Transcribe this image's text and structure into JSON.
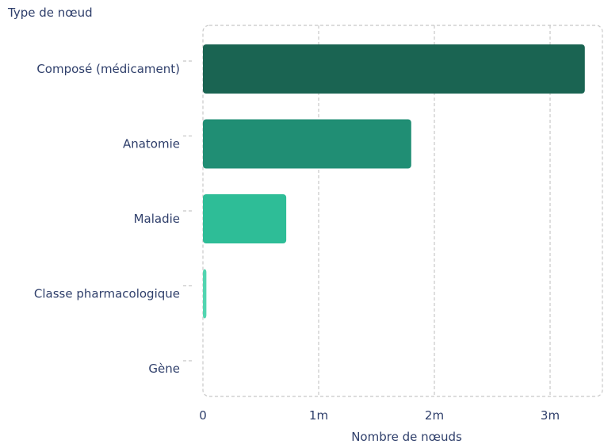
{
  "chart_data": {
    "type": "bar",
    "orientation": "horizontal",
    "xlabel": "Nombre de nœuds",
    "ylabel": "Type de nœud",
    "categories": [
      "Composé (médicament)",
      "Anatomie",
      "Maladie",
      "Classe pharmacologique",
      "Gène"
    ],
    "values": [
      3300000,
      1800000,
      720000,
      30000,
      0
    ],
    "xlim": [
      0,
      3450000
    ],
    "x_ticks": [
      {
        "value": 0,
        "label": "0"
      },
      {
        "value": 1000000,
        "label": "1m"
      },
      {
        "value": 2000000,
        "label": "2m"
      },
      {
        "value": 3000000,
        "label": "3m"
      }
    ],
    "grid": true,
    "legend": "none",
    "bar_colors": [
      "#1a6452",
      "#208e74",
      "#2ebd97",
      "#52d5b0",
      "#8be6cb"
    ],
    "grid_color": "#c8c8c8"
  }
}
